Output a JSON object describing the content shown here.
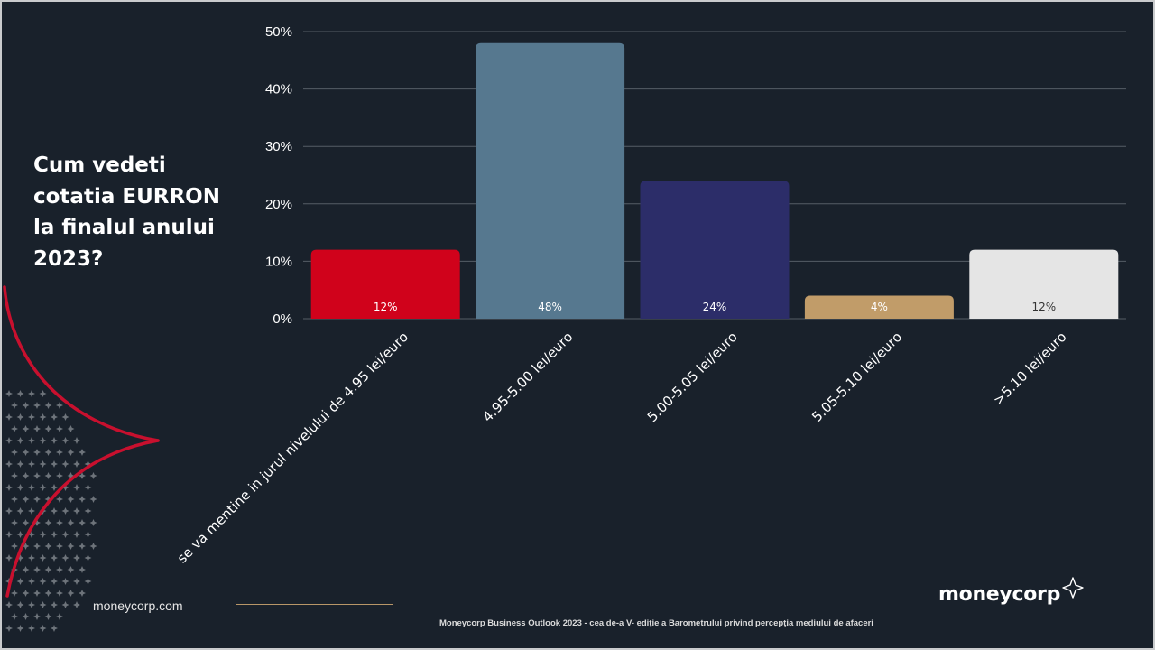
{
  "question": "Cum vedeti cotatia EURRON la finalul anului 2023?",
  "chart_data": {
    "type": "bar",
    "title": "",
    "xlabel": "",
    "ylabel": "",
    "categories": [
      "se va mentine in jurul nivelului de 4.95  lei/euro",
      "4.95-5.00  lei/euro",
      "5.00-5.05  lei/euro",
      "5.05-5.10  lei/euro",
      ">5.10 lei/euro"
    ],
    "values": [
      12,
      48,
      24,
      4,
      12
    ],
    "data_labels": [
      "12%",
      "48%",
      "24%",
      "4%",
      "12%"
    ],
    "bar_colors": [
      "#d0021b",
      "#56788f",
      "#2c2d69",
      "#c19c69",
      "#e5e5e5"
    ],
    "label_colors": [
      "#ffffff",
      "#ffffff",
      "#ffffff",
      "#ffffff",
      "#333333"
    ],
    "ylim": [
      0,
      50
    ],
    "yticks": [
      0,
      10,
      20,
      30,
      40,
      50
    ],
    "ytick_labels": [
      "0%",
      "10%",
      "20%",
      "30%",
      "40%",
      "50%"
    ],
    "grid": true,
    "legend": "none"
  },
  "footer": {
    "website": "moneycorp.com",
    "note": "Moneycorp Business Outlook 2023 - cea de-a V- ediţie a Barometrului privind percepţia mediului de afaceri",
    "brand": "moneycorp"
  },
  "colors": {
    "background": "#19212b",
    "accent_red": "#c8102e",
    "accent_gold": "#b89668"
  },
  "icons": {
    "brand_mark": "sparkle-star-icon"
  }
}
